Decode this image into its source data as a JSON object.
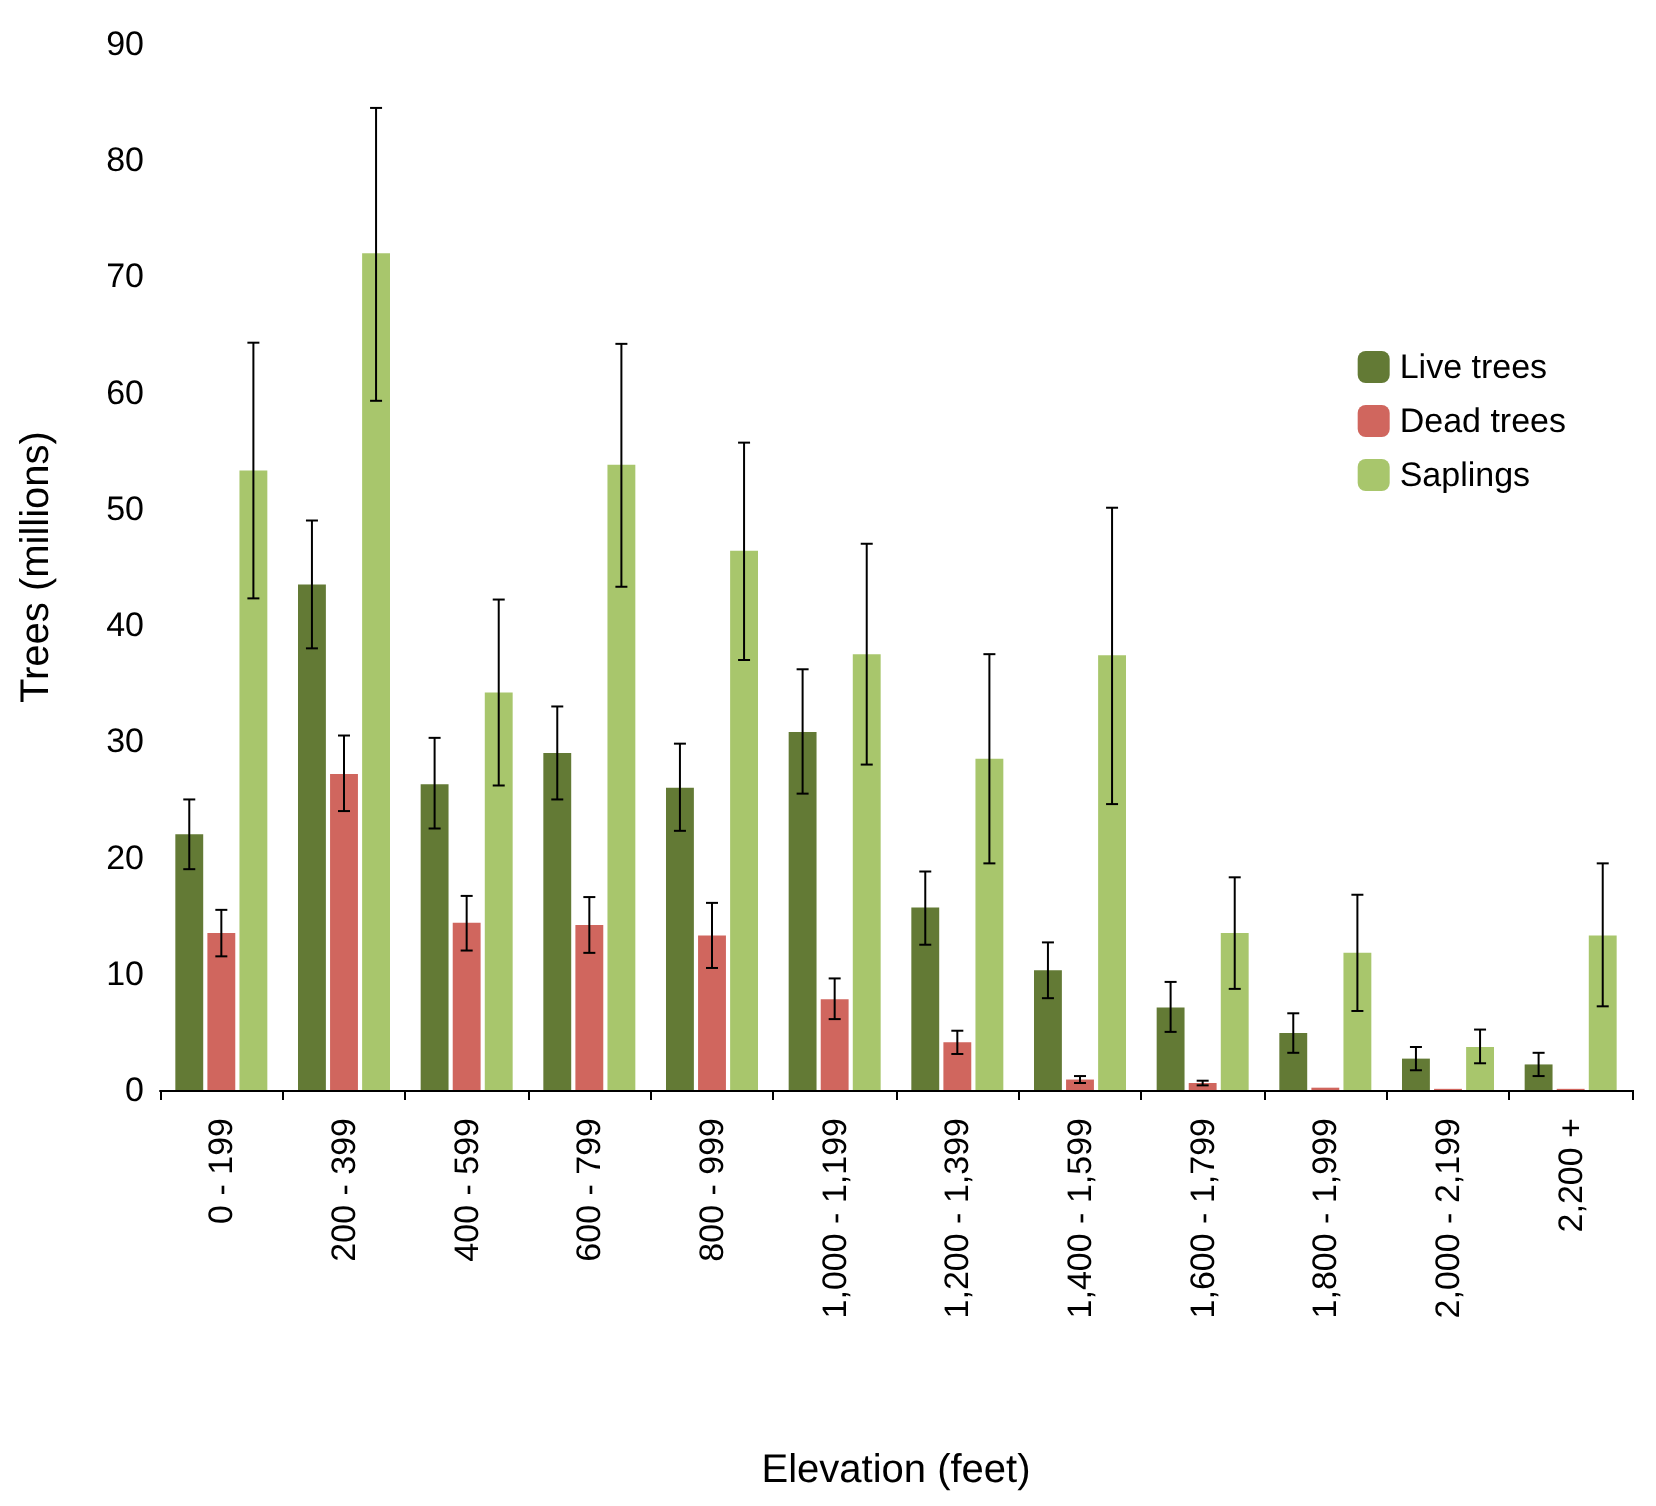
{
  "chart_data": {
    "type": "bar",
    "xlabel": "Elevation (feet)",
    "ylabel": "Trees (millions)",
    "categories": [
      "0 - 199",
      "200 - 399",
      "400 - 599",
      "600 - 799",
      "800 - 999",
      "1,000 - 1,199",
      "1,200 - 1,399",
      "1,400 - 1,599",
      "1,600 - 1,799",
      "1,800 - 1,999",
      "2,000 - 2,199",
      "2,200 +"
    ],
    "series": [
      {
        "name": "Live trees",
        "color": "#637a35",
        "values": [
          22,
          43.5,
          26.3,
          29,
          26,
          30.8,
          15.7,
          10.3,
          7.1,
          4.9,
          2.7,
          2.2
        ],
        "errors": [
          [
            19,
            25
          ],
          [
            38,
            49
          ],
          [
            22.5,
            30.3
          ],
          [
            25,
            33
          ],
          [
            22.3,
            29.8
          ],
          [
            25.5,
            36.2
          ],
          [
            12.5,
            18.8
          ],
          [
            7.9,
            12.7
          ],
          [
            5,
            9.3
          ],
          [
            3.2,
            6.6
          ],
          [
            1.7,
            3.7
          ],
          [
            1.2,
            3.2
          ]
        ]
      },
      {
        "name": "Dead trees",
        "color": "#d0665e",
        "values": [
          13.5,
          27.2,
          14.4,
          14.2,
          13.3,
          7.8,
          4.1,
          0.9,
          0.6,
          0.2,
          0.1,
          0.1
        ],
        "errors": [
          [
            11.5,
            15.5
          ],
          [
            24,
            30.5
          ],
          [
            12,
            16.7
          ],
          [
            11.8,
            16.6
          ],
          [
            10.5,
            16.1
          ],
          [
            6.1,
            9.6
          ],
          [
            3.1,
            5.1
          ],
          [
            0.6,
            1.2
          ],
          [
            0.4,
            0.8
          ],
          null,
          null,
          null
        ]
      },
      {
        "name": "Saplings",
        "color": "#a8c66c",
        "values": [
          53.3,
          72,
          34.2,
          53.8,
          46.4,
          37.5,
          28.5,
          37.4,
          13.5,
          11.8,
          3.7,
          13.3
        ],
        "errors": [
          [
            42.3,
            64.3
          ],
          [
            59.3,
            84.5
          ],
          [
            26.2,
            42.2
          ],
          [
            43.3,
            64.2
          ],
          [
            37,
            55.7
          ],
          [
            28,
            47
          ],
          [
            19.5,
            37.5
          ],
          [
            24.6,
            50.1
          ],
          [
            8.7,
            18.3
          ],
          [
            6.8,
            16.8
          ],
          [
            2.3,
            5.2
          ],
          [
            7.2,
            19.5
          ]
        ]
      }
    ],
    "ylim": [
      0,
      90
    ],
    "yticks": [
      0,
      10,
      20,
      30,
      40,
      50,
      60,
      70,
      80,
      90
    ],
    "grid": false,
    "legend": "top right"
  }
}
